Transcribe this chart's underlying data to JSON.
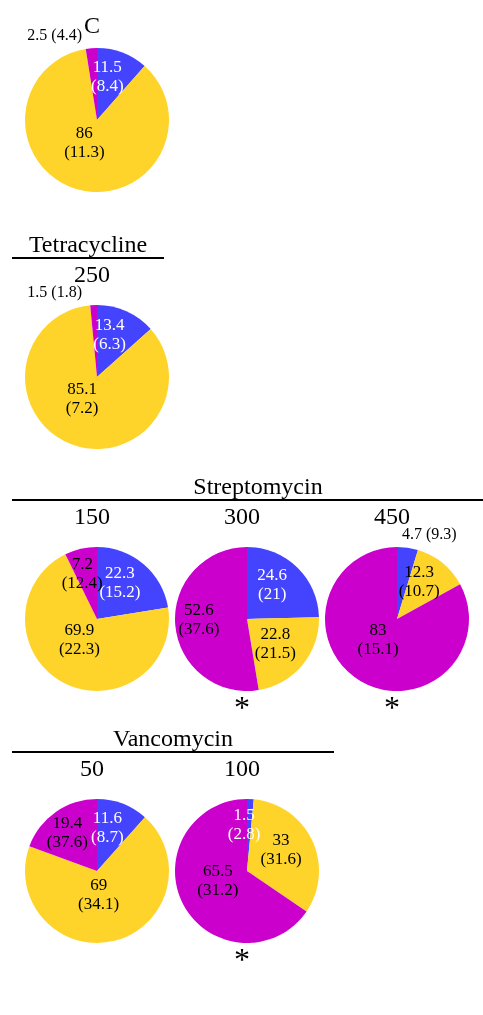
{
  "chart_data": [
    {
      "type": "pie",
      "title": "C",
      "categories": [
        null,
        null,
        null
      ],
      "colors": [
        "#4444ff",
        "#ffd42a",
        "#cc00cc"
      ],
      "series": [
        {
          "values": [
            11.5,
            86,
            2.5
          ],
          "value_labels": [
            "11.5 (8.4)",
            "86 (11.3)",
            "2.5 (4.4)"
          ]
        }
      ]
    },
    {
      "type": "pie",
      "title": "Tetracycline",
      "categories": [
        null,
        null,
        null
      ],
      "colors": [
        "#4444ff",
        "#ffd42a",
        "#cc00cc"
      ],
      "series": [
        {
          "name": "250",
          "values": [
            13.4,
            85.1,
            1.5
          ],
          "value_labels": [
            "13.4 (6.3)",
            "85.1 (7.2)",
            "1.5 (1.8)"
          ]
        }
      ]
    },
    {
      "type": "pie",
      "title": "Streptomycin",
      "categories": [
        null,
        null,
        null
      ],
      "colors": [
        "#4444ff",
        "#ffd42a",
        "#cc00cc"
      ],
      "series": [
        {
          "name": "150",
          "values": [
            22.3,
            69.9,
            7.2
          ],
          "value_labels": [
            "22.3 (15.2)",
            "69.9 (22.3)",
            "7.2 (12.4)"
          ]
        },
        {
          "name": "300",
          "values": [
            24.6,
            22.8,
            52.6
          ],
          "value_labels": [
            "24.6 (21)",
            "22.8 (21.5)",
            "52.6 (37.6)"
          ]
        },
        {
          "name": "450",
          "values": [
            4.7,
            12.3,
            83
          ],
          "value_labels": [
            "4.7 (9.3)",
            "12.3 (10.7)",
            "83 (15.1)"
          ]
        }
      ],
      "annotations": [
        {
          "text": "*",
          "x": "300"
        },
        {
          "text": "*",
          "x": "450"
        }
      ]
    },
    {
      "type": "pie",
      "title": "Vancomycin",
      "categories": [
        null,
        null,
        null
      ],
      "colors": [
        "#4444ff",
        "#ffd42a",
        "#cc00cc"
      ],
      "series": [
        {
          "name": "50",
          "values": [
            11.6,
            69,
            19.4
          ],
          "value_labels": [
            "11.6 (8.7)",
            "69 (34.1)",
            "19.4 (37.6)"
          ]
        },
        {
          "name": "100",
          "values": [
            1.5,
            33,
            65.5
          ],
          "value_labels": [
            "1.5 (2.8)",
            "33 (31.6)",
            "65.5 (31.2)"
          ]
        }
      ],
      "annotations": [
        {
          "text": "*",
          "x": "100"
        }
      ]
    }
  ]
}
